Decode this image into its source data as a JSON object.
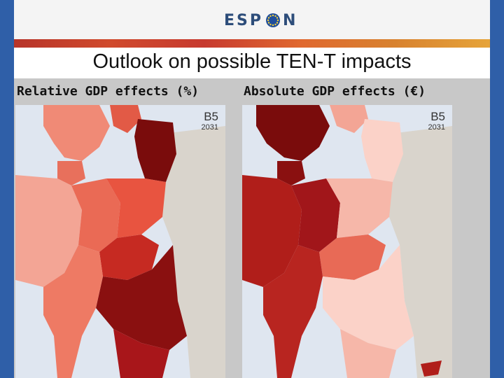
{
  "logo": {
    "text_left": "ESP",
    "text_right": "N"
  },
  "slide": {
    "title": "Outlook on possible TEN-T impacts"
  },
  "maps": [
    {
      "heading": "Relative GDP effects (%)",
      "scenario": "B5",
      "year": "2031"
    },
    {
      "heading": "Absolute GDP effects (€)",
      "scenario": "B5",
      "year": "2031"
    }
  ],
  "colors": {
    "frame": "#2f5fa8",
    "sea": "#dfe6f0",
    "non_eu_land": "#d9d4cc",
    "dark_red": "#7a0c0c",
    "mid_red": "#e04a3a",
    "light_red": "#f3a595",
    "pale_red": "#fbd2c8"
  }
}
